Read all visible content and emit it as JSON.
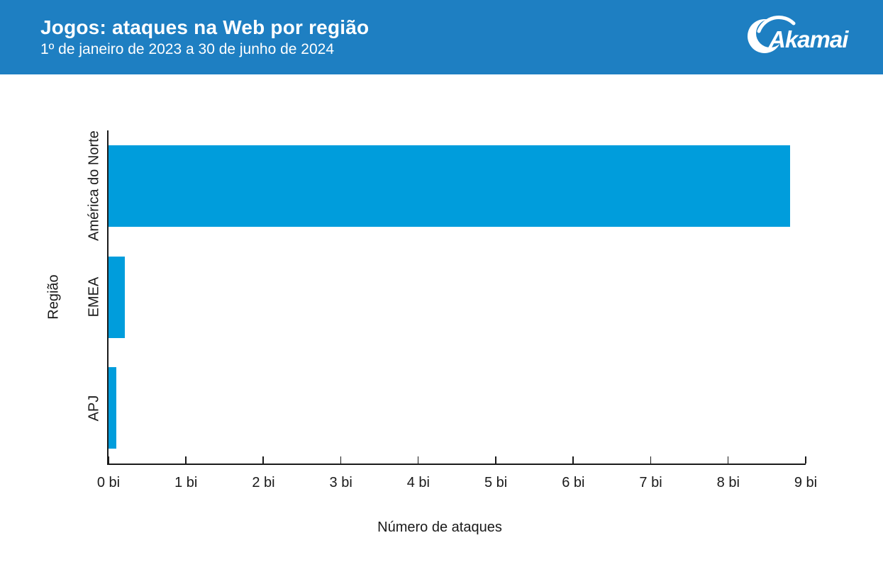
{
  "header": {
    "title": "Jogos: ataques na Web por região",
    "subtitle": "1º de janeiro de 2023 a 30 de junho de 2024",
    "logo_text": "Akamai",
    "colors": {
      "background": "#1E7FC2",
      "text": "#FFFFFF"
    }
  },
  "chart_data": {
    "type": "bar",
    "orientation": "horizontal",
    "title": "Jogos: ataques na Web por região",
    "subtitle": "1º de janeiro de 2023 a 30 de junho de 2024",
    "categories": [
      "América do Norte",
      "EMEA",
      "APJ"
    ],
    "values": [
      8.8,
      0.21,
      0.1
    ],
    "value_unit": "bi",
    "xlabel": "Número de ataques",
    "ylabel": "Região",
    "xlim": [
      0,
      9
    ],
    "xtick_labels": [
      "0 bi",
      "1 bi",
      "2 bi",
      "3 bi",
      "4 bi",
      "5 bi",
      "6 bi",
      "7 bi",
      "8 bi",
      "9 bi"
    ],
    "grid": false,
    "legend": false,
    "colors": {
      "bar": "#009DDC",
      "axis": "#1A1A1A",
      "text": "#1A1A1A",
      "plot_background": "#FFFFFF"
    }
  }
}
